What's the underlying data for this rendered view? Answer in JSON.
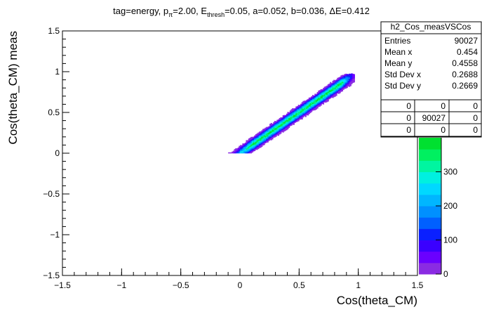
{
  "title": {
    "prefix": "tag=energy, p",
    "p_sub": "π",
    "p_val": "=2.00, E",
    "e_sub": "thresh",
    "rest": "=0.05, a=0.052, b=0.036, ΔE=0.412"
  },
  "stats": {
    "name": "h2_Cos_measVSCos",
    "rows": [
      {
        "label": "Entries",
        "value": "90027"
      },
      {
        "label": "Mean x",
        "value": "0.454"
      },
      {
        "label": "Mean y",
        "value": "0.4558"
      },
      {
        "label": "Std Dev x",
        "value": "0.2688"
      },
      {
        "label": "Std Dev y",
        "value": "0.2669"
      }
    ],
    "grid": [
      [
        "0",
        "0",
        "0"
      ],
      [
        "0",
        "90027",
        "0"
      ],
      [
        "0",
        "0",
        "0"
      ]
    ]
  },
  "chart_data": {
    "type": "heatmap",
    "xlabel": "Cos(theta_CM)",
    "ylabel": "Cos(theta_CM) meas",
    "xlim": [
      -1.5,
      1.5
    ],
    "ylim": [
      -1.5,
      1.5
    ],
    "x_ticks": [
      -1.5,
      -1,
      -0.5,
      0,
      0.5,
      1,
      1.5
    ],
    "y_ticks": [
      -1.5,
      -1,
      -0.5,
      0,
      0.5,
      1,
      1.5
    ],
    "x_tick_labels": [
      "−1.5",
      "−1",
      "−0.5",
      "0",
      "0.5",
      "1",
      "1.5"
    ],
    "y_tick_labels": [
      "−1.5",
      "−1",
      "−0.5",
      "0",
      "0.5",
      "1",
      "1.5"
    ],
    "band": {
      "x_range": [
        -0.15,
        0.97
      ],
      "y_range": [
        0.0,
        0.97
      ],
      "slope": 1.0,
      "intercept": 0.0,
      "description_of_shape": "diagonal band along y = x"
    },
    "colorbar": {
      "range": [
        0,
        400
      ],
      "ticks": [
        0,
        100,
        200,
        300
      ],
      "colors": [
        "#8a2be2",
        "#6a00ff",
        "#3a00ff",
        "#0a20ff",
        "#0060ff",
        "#0090ff",
        "#00b6ff",
        "#00d8ff",
        "#00f0e0",
        "#00f5a0",
        "#00f060",
        "#00e030"
      ]
    }
  }
}
